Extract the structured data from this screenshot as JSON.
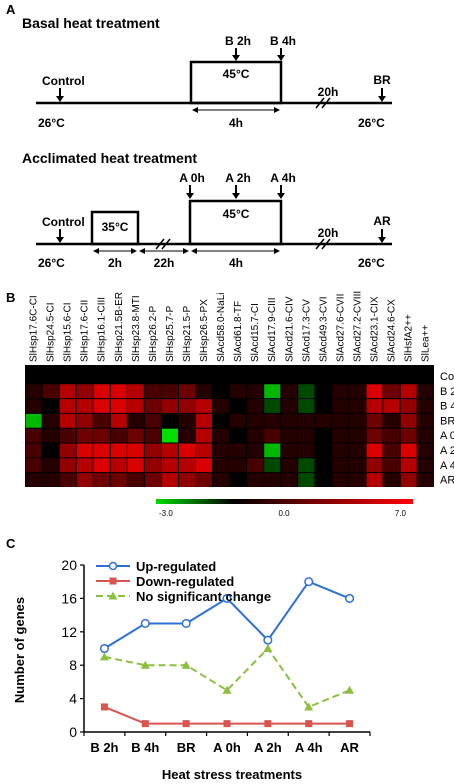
{
  "panel_a": {
    "label": "A",
    "basal": {
      "title": "Basal heat treatment",
      "control": "Control",
      "b2h": "B 2h",
      "b4h": "B 4h",
      "br": "BR",
      "box_temp": "45°C",
      "start_temp": "26°C",
      "end_temp": "26°C",
      "dur_4h": "4h",
      "dur_20h": "20h"
    },
    "acclimated": {
      "title": "Acclimated heat treatment",
      "control": "Control",
      "a0h": "A 0h",
      "a2h": "A 2h",
      "a4h": "A 4h",
      "ar": "AR",
      "pre_temp": "35°C",
      "box_temp": "45°C",
      "start_temp": "26°C",
      "end_temp": "26°C",
      "dur_2h": "2h",
      "dur_22h": "22h",
      "dur_4h": "4h",
      "dur_20h": "20h"
    }
  },
  "panel_b": {
    "label": "B",
    "genes": [
      "SlHsp17.6C-CI",
      "SlHsp24.5-CI",
      "SlHsp15.6-CI",
      "SlHsp17.6-CII",
      "SlHsp16.1-CIII",
      "SlHsp21.5B-ER",
      "SlHsp23.8-MTI",
      "SlHsp26.2-P",
      "SlHsp25.7-P",
      "SlHsp21.5-P",
      "SlHsp26.5-PX",
      "SlAcd58.0-NaLi",
      "SlAcd61.8-TF",
      "SlAcd15.7-CI",
      "SlAcd17.9-CIII",
      "SlAcd21.6-CIV",
      "SlAcd17.3-CV",
      "SlAcd49.3-CVI",
      "SlAcd27.6-CVII",
      "SlAcd27.2-CVIII",
      "SlAcd23.1-CIX",
      "SlAcd24.6-CX",
      "SlHsfA2++",
      "SlLea++"
    ],
    "treatments": [
      "Co",
      "B 2h",
      "B 4h",
      "BR",
      "A 0h",
      "A 2h",
      "A 4h",
      "AR"
    ],
    "scale_min": "-3.0",
    "scale_mid": "0.0",
    "scale_max": "7.0",
    "colors": {
      "low": "#00dd00",
      "mid": "#000000",
      "high": "#ff0000"
    },
    "matrix": [
      [
        0,
        0,
        0,
        0,
        0,
        0,
        0,
        0,
        0,
        0,
        0,
        0,
        0,
        0,
        0,
        0,
        0,
        0,
        0,
        0,
        0,
        0,
        0,
        0
      ],
      [
        1,
        2,
        5,
        4,
        6,
        6,
        5,
        2,
        2,
        3,
        1,
        0,
        1,
        1,
        -2.5,
        1,
        -1,
        0,
        1,
        1,
        6,
        3,
        5,
        1
      ],
      [
        1,
        0,
        5,
        5,
        6,
        6,
        5,
        3,
        4,
        4,
        5,
        1,
        0,
        1,
        -1,
        1,
        -1,
        0,
        1,
        1,
        5,
        5,
        4,
        1
      ],
      [
        -2.5,
        1,
        5,
        4,
        2,
        5,
        1,
        2,
        0,
        1,
        5,
        0,
        1,
        1,
        1,
        1,
        1,
        1,
        1,
        1,
        3,
        1,
        4,
        1
      ],
      [
        2,
        1,
        2,
        3,
        3,
        2,
        3,
        2,
        -3,
        1,
        5,
        1,
        0,
        1,
        2,
        1,
        1,
        0,
        1,
        1,
        3,
        2,
        3,
        1
      ],
      [
        2,
        0,
        4,
        6,
        6,
        6,
        6,
        4,
        5,
        6,
        5,
        1,
        1,
        1,
        -2.5,
        1,
        1,
        0,
        1,
        1,
        6,
        2,
        6,
        1
      ],
      [
        2,
        1,
        4,
        5,
        6,
        5,
        6,
        4,
        5,
        5,
        6,
        1,
        1,
        2,
        -1,
        1,
        -1,
        0,
        1,
        1,
        4,
        2,
        5,
        1
      ],
      [
        1,
        1,
        2,
        4,
        3,
        3,
        2,
        3,
        5,
        4,
        3,
        1,
        0,
        1,
        1,
        1,
        -1,
        0,
        1,
        1,
        5,
        1,
        4,
        1
      ]
    ]
  },
  "panel_c": {
    "label": "C",
    "chart_data": {
      "type": "line",
      "categories": [
        "B 2h",
        "B 4h",
        "BR",
        "A 0h",
        "A 2h",
        "A 4h",
        "AR"
      ],
      "series": [
        {
          "name": "Up-regulated",
          "values": [
            10,
            13,
            13,
            16,
            11,
            18,
            16
          ],
          "color": "#2e6fd6",
          "marker": "circle"
        },
        {
          "name": "Down-regulated",
          "values": [
            3,
            1,
            1,
            1,
            1,
            1,
            1
          ],
          "color": "#d9534f",
          "marker": "square"
        },
        {
          "name": "No significant change",
          "values": [
            9,
            8,
            8,
            5,
            10,
            3,
            5
          ],
          "color": "#8cbf3f",
          "marker": "triangle"
        }
      ],
      "xlabel": "Heat stress treatments",
      "ylabel": "Number of genes",
      "ylim": [
        0,
        20
      ],
      "yticks": [
        "0",
        "4",
        "8",
        "12",
        "16",
        "20"
      ],
      "legend_position": "top-left",
      "grid": false
    }
  }
}
